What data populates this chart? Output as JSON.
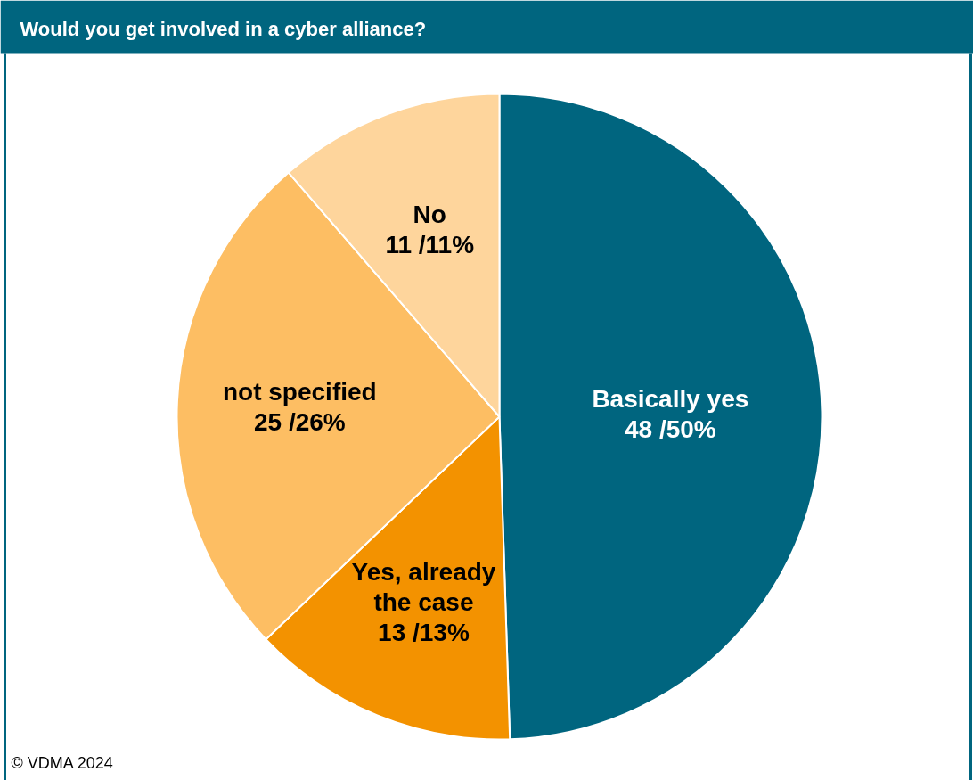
{
  "chart_data": {
    "type": "pie",
    "title": "Would you get involved in a cyber alliance?",
    "categories": [
      "Basically yes",
      "Yes, already the case",
      "not specified",
      "No"
    ],
    "values": [
      48,
      13,
      25,
      11
    ],
    "colors": [
      "#00657f",
      "#f39200",
      "#fdbe63",
      "#fed59c"
    ],
    "value_labels": [
      "48 /50%",
      "13 /13%",
      "25 /26%",
      "11 /11%"
    ],
    "annotations": [
      "© VDMA 2024"
    ]
  }
}
